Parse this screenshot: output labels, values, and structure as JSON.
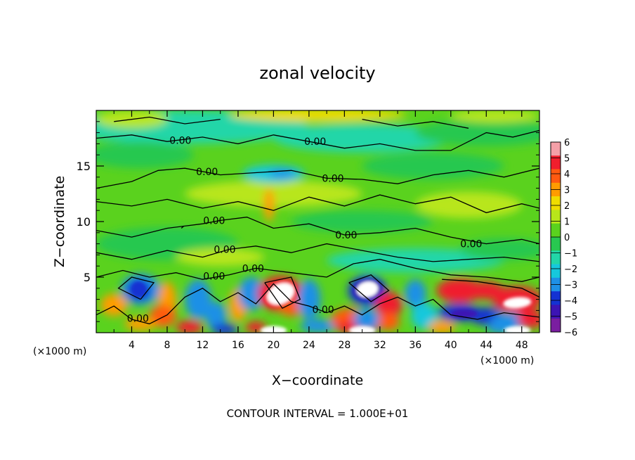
{
  "chart_data": {
    "type": "heatmap",
    "title": "zonal velocity",
    "xlabel": "X−coordinate",
    "ylabel": "Z−coordinate",
    "x_unit_left": "(×1000 m)",
    "x_unit_right": "(×1000 m)",
    "footer": "CONTOUR INTERVAL = 1.000E+01",
    "xlim": [
      0,
      50
    ],
    "ylim": [
      0,
      20
    ],
    "x_ticks": [
      4,
      8,
      12,
      16,
      20,
      24,
      28,
      32,
      36,
      40,
      44,
      48
    ],
    "y_ticks": [
      5,
      10,
      15
    ],
    "colorbar": {
      "levels": [
        6,
        5,
        4,
        3,
        2,
        1,
        0,
        -1,
        -2,
        -3,
        -4,
        -5,
        -6
      ],
      "colors": [
        "#f4a0a8",
        "#f01e2d",
        "#ff5a10",
        "#ff9c00",
        "#f0dc00",
        "#b8e61a",
        "#5ad21e",
        "#28c850",
        "#22d6a8",
        "#16c8dc",
        "#1e90e6",
        "#1432d2",
        "#3c14b4",
        "#7a1ea0"
      ]
    },
    "contour_labels": [
      {
        "text": "0.00",
        "x": 9.5,
        "y": 17.3
      },
      {
        "text": "0.00",
        "x": 24.7,
        "y": 17.2
      },
      {
        "text": "0.00",
        "x": 12.5,
        "y": 14.5
      },
      {
        "text": "0.00",
        "x": 26.7,
        "y": 13.9
      },
      {
        "text": "0.00",
        "x": 13.3,
        "y": 10.1
      },
      {
        "text": "0.00",
        "x": 28.2,
        "y": 8.8
      },
      {
        "text": "0.00",
        "x": 14.5,
        "y": 7.5
      },
      {
        "text": "0.00",
        "x": 17.7,
        "y": 5.8
      },
      {
        "text": "0.00",
        "x": 42.3,
        "y": 8.0
      },
      {
        "text": "0.00",
        "x": 13.3,
        "y": 5.1
      },
      {
        "text": "0.00",
        "x": 4.7,
        "y": 1.3
      },
      {
        "text": "0.00",
        "x": 25.6,
        "y": 2.1
      }
    ]
  }
}
